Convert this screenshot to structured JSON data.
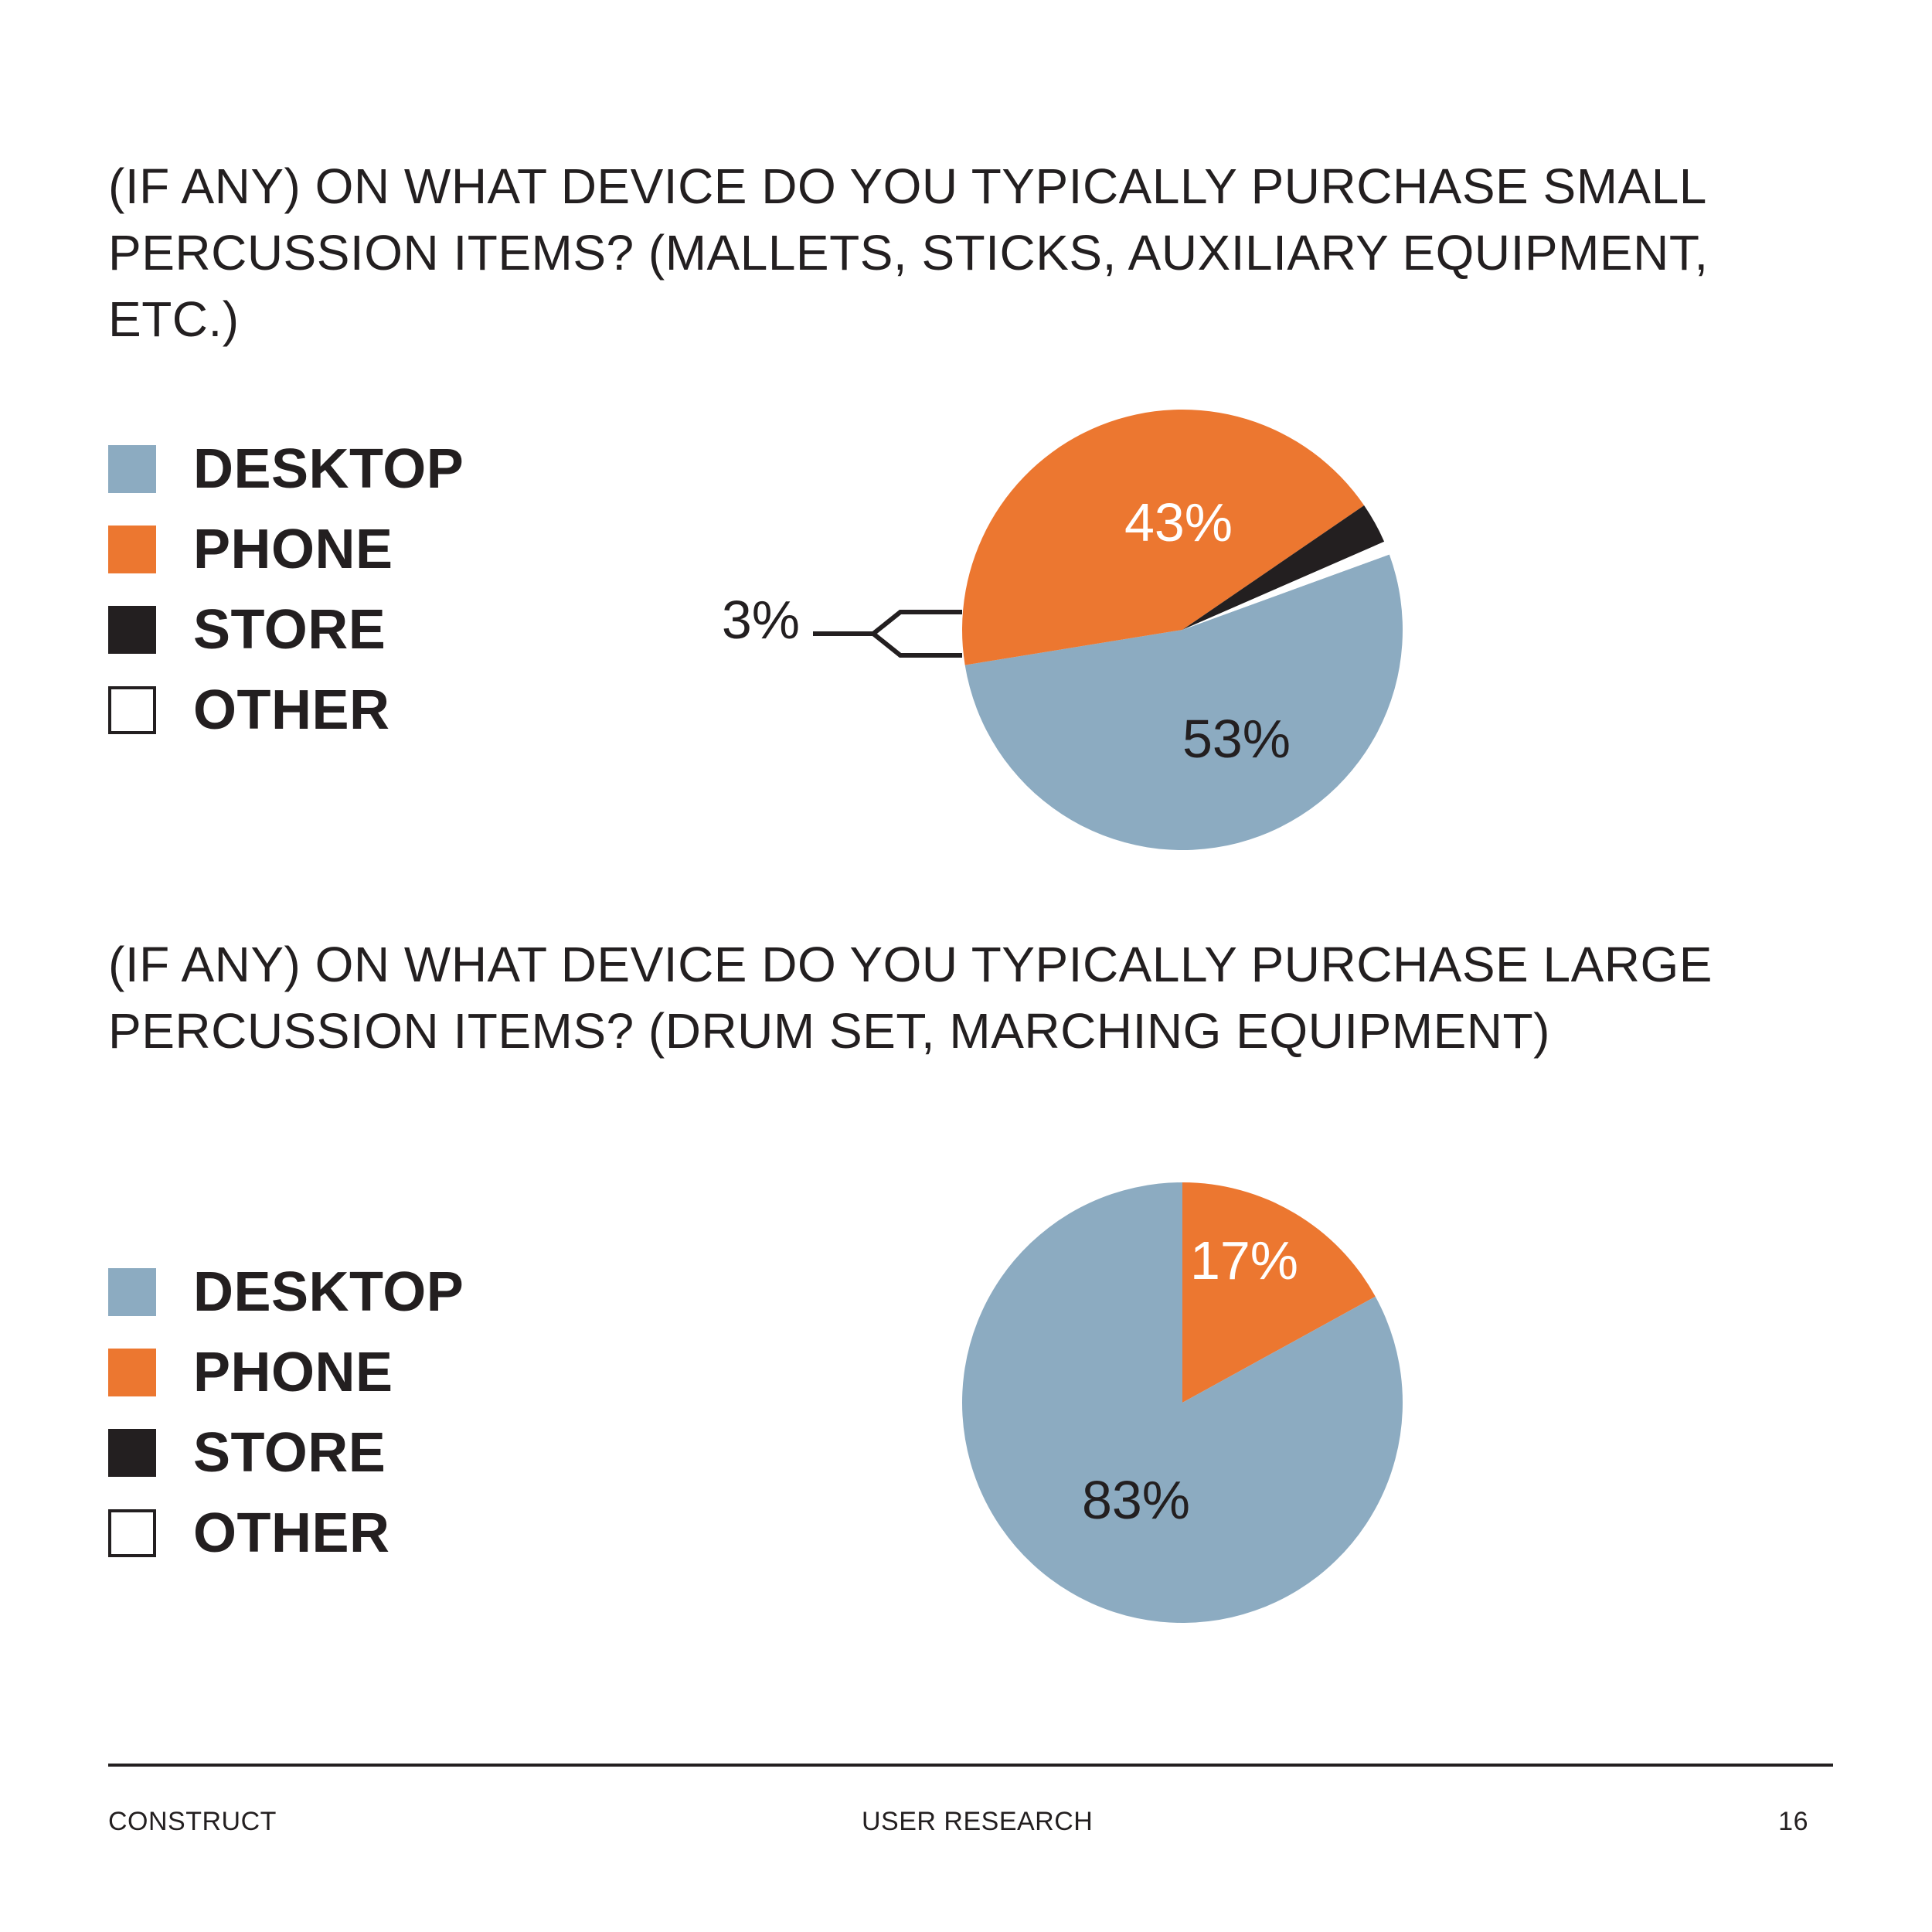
{
  "chart_data": [
    {
      "type": "pie",
      "title": "(IF ANY) ON WHAT DEVICE DO YOU TYPICALLY PURCHASE SMALL\nPERCUSSION ITEMS? (MALLETS, STICKS, AUXILIARY EQUIPMENT, ETC.)",
      "legend_position": "left",
      "slices": [
        {
          "label": "DESKTOP",
          "value": 53,
          "color": "#8cabc1",
          "data_label": "53%"
        },
        {
          "label": "PHONE",
          "value": 43,
          "color": "#ec7730",
          "data_label": "43%"
        },
        {
          "label": "STORE",
          "value": 3,
          "color": "#231f20",
          "data_label": "3%"
        },
        {
          "label": "OTHER",
          "value": 1,
          "color": "#ffffff",
          "data_label": ""
        }
      ]
    },
    {
      "type": "pie",
      "title": "(IF ANY) ON WHAT DEVICE DO YOU TYPICALLY PURCHASE LARGE\nPERCUSSION ITEMS? (DRUM SET, MARCHING EQUIPMENT)",
      "legend_position": "left",
      "slices": [
        {
          "label": "DESKTOP",
          "value": 83,
          "color": "#8cabc1",
          "data_label": "83%"
        },
        {
          "label": "PHONE",
          "value": 17,
          "color": "#ec7730",
          "data_label": "17%"
        },
        {
          "label": "STORE",
          "value": 0,
          "color": "#231f20",
          "data_label": ""
        },
        {
          "label": "OTHER",
          "value": 0,
          "color": "#ffffff",
          "data_label": ""
        }
      ]
    }
  ],
  "footer": {
    "left": "CONSTRUCT",
    "center": "USER RESEARCH",
    "page_number": "16"
  }
}
